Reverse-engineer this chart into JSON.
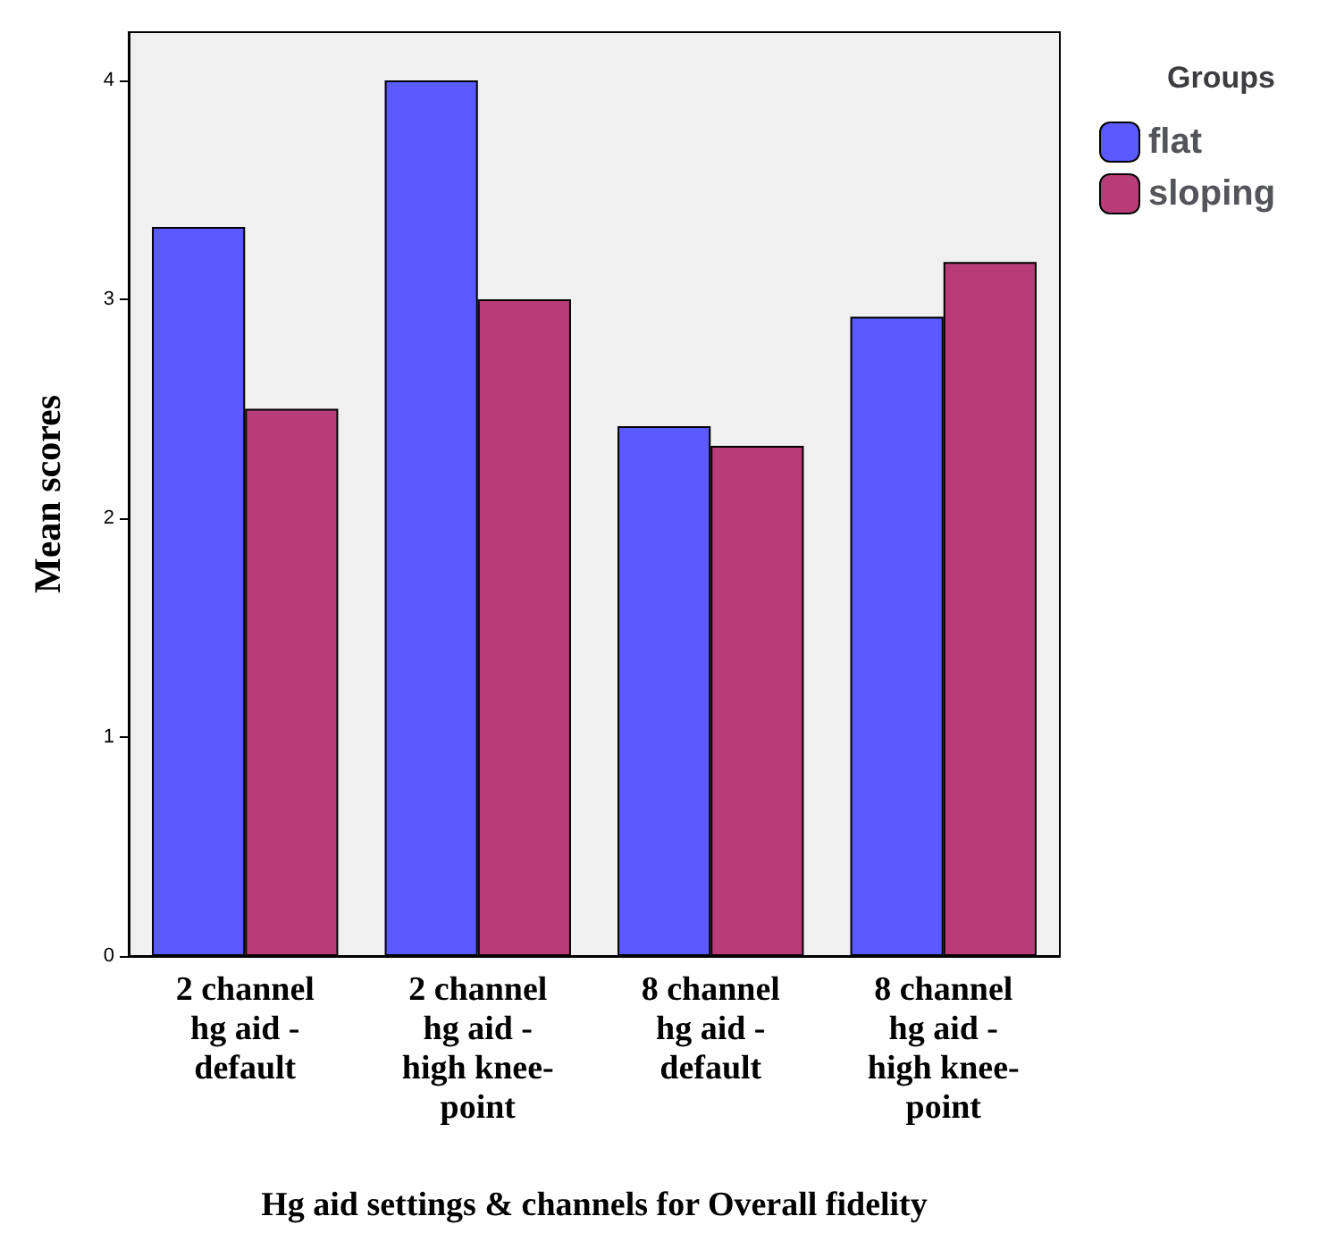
{
  "chart_data": {
    "type": "bar",
    "xlabel": "Hg aid settings & channels for Overall fidelity",
    "ylabel": "Mean scores",
    "legend_title": "Groups",
    "categories": [
      "2 channel\nhg aid -\ndefault",
      "2 channel\nhg aid -\nhigh knee-\npoint",
      "8 channel\nhg aid -\ndefault",
      "8 channel\nhg aid -\nhigh knee-\npoint"
    ],
    "series": [
      {
        "name": "flat",
        "color": "#5a5aff",
        "values": [
          3.33,
          4.0,
          2.42,
          2.92
        ]
      },
      {
        "name": "sloping",
        "color": "#b83c78",
        "values": [
          2.5,
          3.0,
          2.33,
          3.17
        ]
      }
    ],
    "ylim": [
      0,
      4.22
    ],
    "yticks": [
      0,
      1,
      2,
      3,
      4
    ],
    "grid": false,
    "legend": "top right"
  }
}
